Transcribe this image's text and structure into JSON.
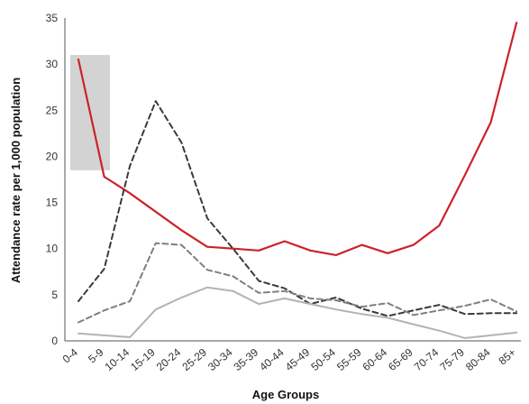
{
  "chart_data": {
    "type": "line",
    "title": "",
    "xlabel": "Age Groups",
    "ylabel": "Attendance rate per 1,000 population",
    "categories": [
      "0-4",
      "5-9",
      "10-14",
      "15-19",
      "20-24",
      "25-29",
      "30-34",
      "35-39",
      "40-44",
      "45-49",
      "50-54",
      "55-59",
      "60-64",
      "65-69",
      "70-74",
      "75-79",
      "80-84",
      "85+"
    ],
    "ylim": [
      0,
      35
    ],
    "yticks": [
      0,
      5,
      10,
      15,
      20,
      25,
      30,
      35
    ],
    "grid": false,
    "legend": "none",
    "highlight": {
      "category": "0-4",
      "ymin": 18.5,
      "ymax": 31,
      "color": "#d3d3d3"
    },
    "series": [
      {
        "color": "#cc2229",
        "dash": "solid",
        "values": [
          30.5,
          17.8,
          16.0,
          14.0,
          12.0,
          10.2,
          10.0,
          9.8,
          10.8,
          9.8,
          9.3,
          10.4,
          9.5,
          10.4,
          12.5,
          18.0,
          23.7,
          34.5
        ]
      },
      {
        "color": "#3a3a3a",
        "dash": "dashed",
        "values": [
          4.3,
          7.8,
          19.0,
          26.0,
          21.5,
          13.3,
          10.0,
          6.5,
          5.7,
          4.0,
          4.7,
          3.5,
          2.7,
          3.3,
          3.9,
          2.9,
          3.0,
          3.0
        ]
      },
      {
        "color": "#7f7f7f",
        "dash": "dashed",
        "values": [
          2.0,
          3.3,
          4.3,
          10.6,
          10.4,
          7.7,
          7.0,
          5.2,
          5.4,
          4.6,
          4.4,
          3.7,
          4.1,
          2.8,
          3.3,
          3.8,
          4.5,
          3.2
        ]
      },
      {
        "color": "#b3b3b3",
        "dash": "solid",
        "values": [
          0.8,
          0.6,
          0.4,
          3.4,
          4.7,
          5.8,
          5.4,
          4.0,
          4.6,
          4.0,
          3.4,
          2.9,
          2.5,
          1.8,
          1.1,
          0.3,
          0.6,
          0.9
        ]
      }
    ]
  }
}
